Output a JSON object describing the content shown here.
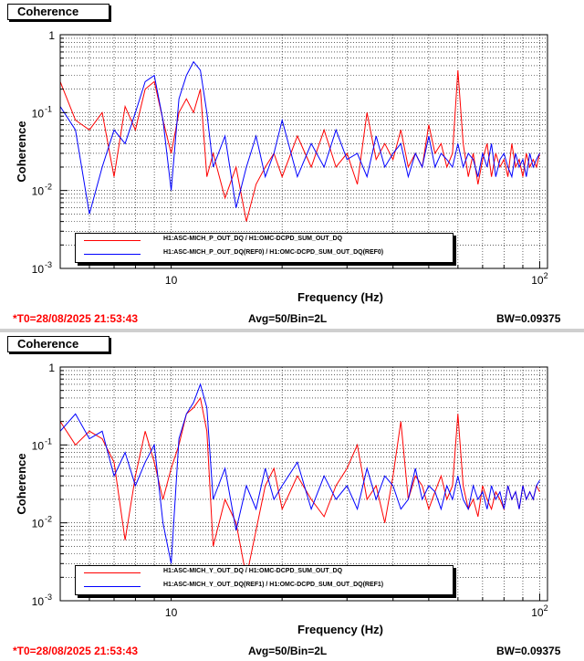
{
  "panels": [
    {
      "tab_label": "Coherence",
      "t0": "*T0=28/08/2025 21:53:43",
      "avg": "Avg=50/Bin=2L",
      "bw": "BW=0.09375",
      "legend": [
        {
          "label": "H1:ASC-MICH_P_OUT_DQ / H1:OMC-DCPD_SUM_OUT_DQ",
          "color": "#ff0000"
        },
        {
          "label": "H1:ASC-MICH_P_OUT_DQ(REF0) / H1:OMC-DCPD_SUM_OUT_DQ(REF0)",
          "color": "#0000ff"
        }
      ]
    },
    {
      "tab_label": "Coherence",
      "t0": "*T0=28/08/2025 21:53:43",
      "avg": "Avg=50/Bin=2L",
      "bw": "BW=0.09375",
      "legend": [
        {
          "label": "H1:ASC-MICH_Y_OUT_DQ / H1:OMC-DCPD_SUM_OUT_DQ",
          "color": "#ff0000"
        },
        {
          "label": "H1:ASC-MICH_Y_OUT_DQ(REF1) / H1:OMC-DCPD_SUM_OUT_DQ(REF1)",
          "color": "#0000ff"
        }
      ]
    }
  ],
  "chart_data": [
    {
      "type": "line",
      "xlabel": "Frequency (Hz)",
      "ylabel": "Coherence",
      "xscale": "log",
      "yscale": "log",
      "xlim": [
        5,
        105
      ],
      "ylim": [
        0.001,
        1
      ],
      "xticks": [
        {
          "value": 10,
          "label": "10"
        },
        {
          "value": 100,
          "label": "10",
          "exp": "2"
        }
      ],
      "yticks": [
        {
          "value": 0.001,
          "label": "10",
          "exp": "-3"
        },
        {
          "value": 0.01,
          "label": "10",
          "exp": "-2"
        },
        {
          "value": 0.1,
          "label": "10",
          "exp": "-1"
        },
        {
          "value": 1,
          "label": "1"
        }
      ],
      "grid": true,
      "series": [
        {
          "name": "H1:ASC-MICH_P_OUT_DQ / H1:OMC-DCPD_SUM_OUT_DQ",
          "color": "#ff0000",
          "x": [
            5,
            5.5,
            6,
            6.5,
            7,
            7.5,
            8,
            8.5,
            9,
            9.5,
            10,
            10.5,
            11,
            11.5,
            12,
            12.5,
            13,
            14,
            15,
            16,
            17,
            18,
            19,
            20,
            22,
            24,
            26,
            28,
            30,
            32,
            34,
            36,
            38,
            40,
            42,
            44,
            46,
            48,
            50,
            52,
            54,
            56,
            58,
            60,
            62,
            64,
            66,
            68,
            70,
            72,
            74,
            76,
            78,
            80,
            82,
            84,
            86,
            88,
            90,
            92,
            94,
            96,
            98,
            100
          ],
          "y": [
            0.25,
            0.08,
            0.06,
            0.1,
            0.015,
            0.12,
            0.06,
            0.2,
            0.25,
            0.08,
            0.03,
            0.1,
            0.15,
            0.1,
            0.2,
            0.015,
            0.03,
            0.008,
            0.02,
            0.004,
            0.012,
            0.02,
            0.03,
            0.015,
            0.05,
            0.02,
            0.06,
            0.02,
            0.03,
            0.012,
            0.1,
            0.025,
            0.04,
            0.025,
            0.06,
            0.02,
            0.03,
            0.02,
            0.07,
            0.03,
            0.04,
            0.02,
            0.03,
            0.35,
            0.04,
            0.015,
            0.03,
            0.012,
            0.025,
            0.04,
            0.015,
            0.03,
            0.02,
            0.025,
            0.015,
            0.04,
            0.02,
            0.025,
            0.015,
            0.03,
            0.02,
            0.025,
            0.02,
            0.03
          ]
        },
        {
          "name": "H1:ASC-MICH_P_OUT_DQ(REF0) / H1:OMC-DCPD_SUM_OUT_DQ(REF0)",
          "color": "#0000ff",
          "x": [
            5,
            5.5,
            6,
            6.5,
            7,
            7.5,
            8,
            8.5,
            9,
            9.5,
            10,
            10.5,
            11,
            11.5,
            12,
            12.5,
            13,
            14,
            15,
            16,
            17,
            18,
            19,
            20,
            22,
            24,
            26,
            28,
            30,
            32,
            34,
            36,
            38,
            40,
            42,
            44,
            46,
            48,
            50,
            52,
            54,
            56,
            58,
            60,
            62,
            64,
            66,
            68,
            70,
            72,
            74,
            76,
            78,
            80,
            82,
            84,
            86,
            88,
            90,
            92,
            94,
            96,
            98,
            100
          ],
          "y": [
            0.12,
            0.06,
            0.005,
            0.02,
            0.06,
            0.04,
            0.1,
            0.25,
            0.3,
            0.08,
            0.01,
            0.15,
            0.3,
            0.45,
            0.35,
            0.1,
            0.02,
            0.05,
            0.006,
            0.02,
            0.05,
            0.015,
            0.03,
            0.08,
            0.015,
            0.04,
            0.02,
            0.06,
            0.025,
            0.03,
            0.015,
            0.05,
            0.02,
            0.03,
            0.04,
            0.015,
            0.03,
            0.02,
            0.05,
            0.02,
            0.03,
            0.025,
            0.02,
            0.04,
            0.02,
            0.03,
            0.025,
            0.015,
            0.03,
            0.02,
            0.04,
            0.015,
            0.025,
            0.03,
            0.02,
            0.015,
            0.03,
            0.02,
            0.025,
            0.015,
            0.03,
            0.02,
            0.025,
            0.03
          ]
        }
      ]
    },
    {
      "type": "line",
      "xlabel": "Frequency (Hz)",
      "ylabel": "Coherence",
      "xscale": "log",
      "yscale": "log",
      "xlim": [
        5,
        105
      ],
      "ylim": [
        0.001,
        1
      ],
      "xticks": [
        {
          "value": 10,
          "label": "10"
        },
        {
          "value": 100,
          "label": "10",
          "exp": "2"
        }
      ],
      "yticks": [
        {
          "value": 0.001,
          "label": "10",
          "exp": "-3"
        },
        {
          "value": 0.01,
          "label": "10",
          "exp": "-2"
        },
        {
          "value": 0.1,
          "label": "10",
          "exp": "-1"
        },
        {
          "value": 1,
          "label": "1"
        }
      ],
      "grid": true,
      "series": [
        {
          "name": "H1:ASC-MICH_Y_OUT_DQ / H1:OMC-DCPD_SUM_OUT_DQ",
          "color": "#ff0000",
          "x": [
            5,
            5.5,
            6,
            6.5,
            7,
            7.5,
            8,
            8.5,
            9,
            9.5,
            10,
            10.5,
            11,
            11.5,
            12,
            12.5,
            13,
            14,
            15,
            16,
            17,
            18,
            19,
            20,
            22,
            24,
            26,
            28,
            30,
            32,
            34,
            36,
            38,
            40,
            42,
            44,
            46,
            48,
            50,
            52,
            54,
            56,
            58,
            60,
            62,
            64,
            66,
            68,
            70,
            72,
            74,
            76,
            78,
            80,
            82,
            84,
            86,
            88,
            90,
            92,
            94,
            96,
            98,
            100
          ],
          "y": [
            0.2,
            0.1,
            0.15,
            0.12,
            0.06,
            0.006,
            0.04,
            0.15,
            0.06,
            0.02,
            0.05,
            0.1,
            0.25,
            0.3,
            0.4,
            0.15,
            0.005,
            0.02,
            0.01,
            0.002,
            0.008,
            0.03,
            0.05,
            0.015,
            0.04,
            0.02,
            0.012,
            0.03,
            0.05,
            0.1,
            0.02,
            0.03,
            0.01,
            0.04,
            0.2,
            0.02,
            0.04,
            0.03,
            0.015,
            0.025,
            0.04,
            0.02,
            0.03,
            0.25,
            0.03,
            0.015,
            0.02,
            0.012,
            0.03,
            0.02,
            0.015,
            0.025,
            0.02,
            0.015,
            0.03,
            0.02,
            0.025,
            0.015,
            0.03,
            0.02,
            0.025,
            0.02,
            0.03,
            0.025
          ]
        },
        {
          "name": "H1:ASC-MICH_Y_OUT_DQ(REF1) / H1:OMC-DCPD_SUM_OUT_DQ(REF1)",
          "color": "#0000ff",
          "x": [
            5,
            5.5,
            6,
            6.5,
            7,
            7.5,
            8,
            8.5,
            9,
            9.5,
            10,
            10.5,
            11,
            11.5,
            12,
            12.5,
            13,
            14,
            15,
            16,
            17,
            18,
            19,
            20,
            22,
            24,
            26,
            28,
            30,
            32,
            34,
            36,
            38,
            40,
            42,
            44,
            46,
            48,
            50,
            52,
            54,
            56,
            58,
            60,
            62,
            64,
            66,
            68,
            70,
            72,
            74,
            76,
            78,
            80,
            82,
            84,
            86,
            88,
            90,
            92,
            94,
            96,
            98,
            100
          ],
          "y": [
            0.15,
            0.25,
            0.12,
            0.15,
            0.04,
            0.08,
            0.03,
            0.06,
            0.1,
            0.01,
            0.003,
            0.12,
            0.25,
            0.35,
            0.6,
            0.3,
            0.02,
            0.05,
            0.008,
            0.03,
            0.015,
            0.05,
            0.02,
            0.03,
            0.06,
            0.015,
            0.04,
            0.02,
            0.03,
            0.015,
            0.05,
            0.02,
            0.04,
            0.03,
            0.015,
            0.02,
            0.05,
            0.02,
            0.03,
            0.025,
            0.015,
            0.03,
            0.02,
            0.04,
            0.02,
            0.015,
            0.03,
            0.02,
            0.025,
            0.015,
            0.03,
            0.02,
            0.025,
            0.015,
            0.03,
            0.02,
            0.025,
            0.015,
            0.03,
            0.02,
            0.025,
            0.02,
            0.03,
            0.035
          ]
        }
      ]
    }
  ]
}
